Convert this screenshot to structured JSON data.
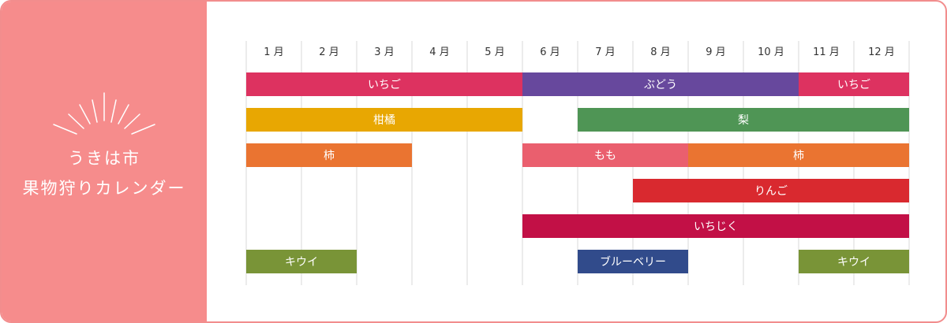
{
  "sidebar": {
    "title_line1": "うきは市",
    "title_line2": "果物狩りカレンダー"
  },
  "colors": {
    "panel": "#f68c8c",
    "border": "#f28d8d",
    "gridline": "#d9d9d9"
  },
  "chart_data": {
    "type": "gantt",
    "categories": [
      "1 月",
      "2 月",
      "3 月",
      "4 月",
      "5 月",
      "6 月",
      "7 月",
      "8 月",
      "9 月",
      "10 月",
      "11 月",
      "12 月"
    ],
    "rows": [
      [
        {
          "label": "いちご",
          "start": 1,
          "end": 5,
          "color": "#dd3260"
        },
        {
          "label": "ぶどう",
          "start": 6,
          "end": 10,
          "color": "#67489d"
        },
        {
          "label": "いちご",
          "start": 11,
          "end": 12,
          "color": "#dd3260"
        }
      ],
      [
        {
          "label": "柑橘",
          "start": 1,
          "end": 5,
          "color": "#e8a702"
        },
        {
          "label": "梨",
          "start": 7,
          "end": 12,
          "color": "#4f9555"
        }
      ],
      [
        {
          "label": "柿",
          "start": 1,
          "end": 3,
          "color": "#ea7431"
        },
        {
          "label": "もも",
          "start": 6,
          "end": 8,
          "color": "#ea5f6e"
        },
        {
          "label": "柿",
          "start": 9,
          "end": 12,
          "color": "#ea7431"
        }
      ],
      [
        {
          "label": "りんご",
          "start": 8,
          "end": 12,
          "color": "#d9292f"
        }
      ],
      [
        {
          "label": "いちじく",
          "start": 6,
          "end": 12,
          "color": "#c21046"
        }
      ],
      [
        {
          "label": "キウイ",
          "start": 1,
          "end": 2,
          "color": "#799437"
        },
        {
          "label": "ブルーベリー",
          "start": 7,
          "end": 8,
          "color": "#314b8b"
        },
        {
          "label": "キウイ",
          "start": 11,
          "end": 12,
          "color": "#799437"
        }
      ]
    ]
  }
}
